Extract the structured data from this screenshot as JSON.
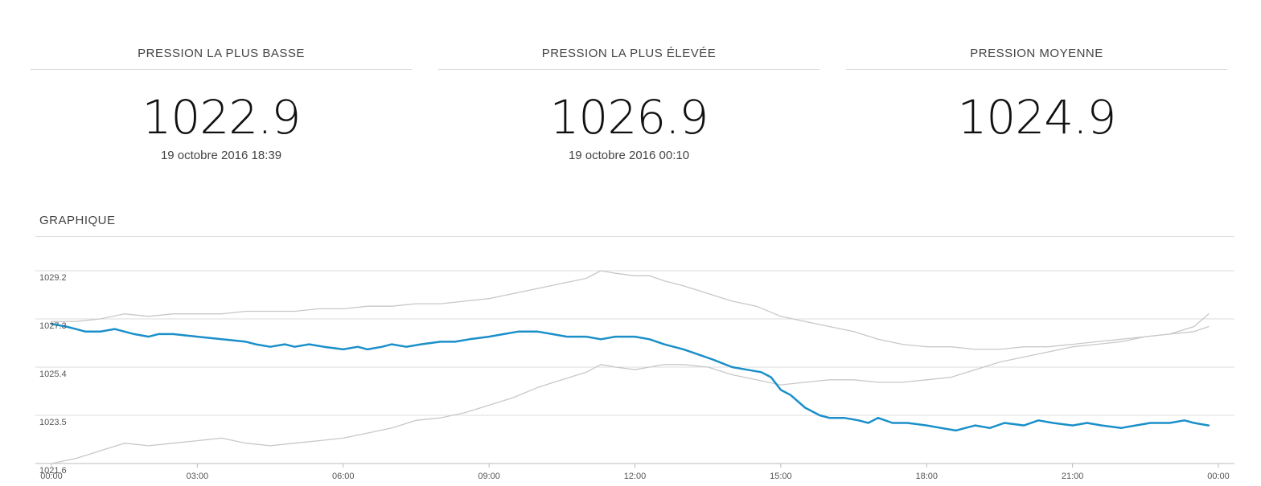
{
  "stats": {
    "low": {
      "label": "PRESSION LA PLUS BASSE",
      "value": "1022.9",
      "date": "19 octobre 2016 18:39"
    },
    "high": {
      "label": "PRESSION LA PLUS ÉLEVÉE",
      "value": "1026.9",
      "date": "19 octobre 2016 00:10"
    },
    "avg": {
      "label": "PRESSION MOYENNE",
      "value": "1024.9"
    }
  },
  "chart_title": "GRAPHIQUE",
  "chart_data": {
    "type": "line",
    "xlim": [
      0,
      24
    ],
    "ylim": [
      1021.6,
      1029.2
    ],
    "yticks": [
      "1029.2",
      "1027.3",
      "1025.4",
      "1023.5",
      "1021.6"
    ],
    "ytick_values": [
      1029.2,
      1027.3,
      1025.4,
      1023.5,
      1021.6
    ],
    "xticks": [
      "00:00",
      "03:00",
      "06:00",
      "09:00",
      "12:00",
      "15:00",
      "18:00",
      "21:00",
      "00:00"
    ],
    "xtick_values": [
      0,
      3,
      6,
      9,
      12,
      15,
      18,
      21,
      24
    ],
    "grid": true,
    "legend": "none",
    "series": [
      {
        "color": "#1a8fc9",
        "x": [
          0,
          0.3,
          0.5,
          0.7,
          1.0,
          1.3,
          1.7,
          2.0,
          2.2,
          2.5,
          3.0,
          3.5,
          4.0,
          4.2,
          4.5,
          4.8,
          5.0,
          5.3,
          5.6,
          6.0,
          6.3,
          6.5,
          6.8,
          7.0,
          7.3,
          7.6,
          8.0,
          8.3,
          8.6,
          9.0,
          9.3,
          9.6,
          10.0,
          10.3,
          10.6,
          11.0,
          11.3,
          11.6,
          12.0,
          12.3,
          12.6,
          13.0,
          13.3,
          13.6,
          14.0,
          14.3,
          14.6,
          14.8,
          15.0,
          15.2,
          15.5,
          15.8,
          16.0,
          16.3,
          16.6,
          16.8,
          17.0,
          17.3,
          17.6,
          18.0,
          18.3,
          18.6,
          19.0,
          19.3,
          19.6,
          20.0,
          20.3,
          20.6,
          21.0,
          21.3,
          21.6,
          22.0,
          22.3,
          22.6,
          23.0,
          23.3,
          23.5,
          23.8
        ],
        "values": [
          1027.1,
          1027.0,
          1026.9,
          1026.8,
          1026.8,
          1026.9,
          1026.7,
          1026.6,
          1026.7,
          1026.7,
          1026.6,
          1026.5,
          1026.4,
          1026.3,
          1026.2,
          1026.3,
          1026.2,
          1026.3,
          1026.2,
          1026.1,
          1026.2,
          1026.1,
          1026.2,
          1026.3,
          1026.2,
          1026.3,
          1026.4,
          1026.4,
          1026.5,
          1026.6,
          1026.7,
          1026.8,
          1026.8,
          1026.7,
          1026.6,
          1026.6,
          1026.5,
          1026.6,
          1026.6,
          1026.5,
          1026.3,
          1026.1,
          1025.9,
          1025.7,
          1025.4,
          1025.3,
          1025.2,
          1025.0,
          1024.5,
          1024.3,
          1023.8,
          1023.5,
          1023.4,
          1023.4,
          1023.3,
          1023.2,
          1023.4,
          1023.2,
          1023.2,
          1023.1,
          1023.0,
          1022.9,
          1023.1,
          1023.0,
          1023.2,
          1023.1,
          1023.3,
          1023.2,
          1023.1,
          1023.2,
          1023.1,
          1023.0,
          1023.1,
          1023.2,
          1023.2,
          1023.3,
          1023.2,
          1023.1
        ]
      },
      {
        "color": "#c8c8c8",
        "x": [
          0,
          0.5,
          1.0,
          1.5,
          2.0,
          2.5,
          3.0,
          3.5,
          4.0,
          4.5,
          5.0,
          5.5,
          6.0,
          6.5,
          7.0,
          7.5,
          8.0,
          8.5,
          9.0,
          9.5,
          10.0,
          10.5,
          11.0,
          11.3,
          11.6,
          12.0,
          12.3,
          12.6,
          13.0,
          13.5,
          14.0,
          14.5,
          15.0,
          15.5,
          16.0,
          16.5,
          17.0,
          17.5,
          18.0,
          18.5,
          19.0,
          19.5,
          20.0,
          20.5,
          21.0,
          21.5,
          22.0,
          22.5,
          23.0,
          23.5,
          23.8
        ],
        "values": [
          1027.2,
          1027.2,
          1027.3,
          1027.5,
          1027.4,
          1027.5,
          1027.5,
          1027.5,
          1027.6,
          1027.6,
          1027.6,
          1027.7,
          1027.7,
          1027.8,
          1027.8,
          1027.9,
          1027.9,
          1028.0,
          1028.1,
          1028.3,
          1028.5,
          1028.7,
          1028.9,
          1029.2,
          1029.1,
          1029.0,
          1029.0,
          1028.8,
          1028.6,
          1028.3,
          1028.0,
          1027.8,
          1027.4,
          1027.2,
          1027.0,
          1026.8,
          1026.5,
          1026.3,
          1026.2,
          1026.2,
          1026.1,
          1026.1,
          1026.2,
          1026.2,
          1026.3,
          1026.4,
          1026.5,
          1026.6,
          1026.7,
          1027.0,
          1027.5
        ]
      },
      {
        "color": "#c8c8c8",
        "x": [
          0,
          0.5,
          1.0,
          1.5,
          2.0,
          2.5,
          3.0,
          3.5,
          4.0,
          4.5,
          5.0,
          5.5,
          6.0,
          6.5,
          7.0,
          7.5,
          8.0,
          8.5,
          9.0,
          9.5,
          10.0,
          10.5,
          11.0,
          11.3,
          11.6,
          12.0,
          12.3,
          12.6,
          13.0,
          13.5,
          14.0,
          14.5,
          15.0,
          15.5,
          16.0,
          16.5,
          17.0,
          17.5,
          18.0,
          18.5,
          19.0,
          19.5,
          20.0,
          20.5,
          21.0,
          21.5,
          22.0,
          22.5,
          23.0,
          23.5,
          23.8
        ],
        "values": [
          1021.6,
          1021.8,
          1022.1,
          1022.4,
          1022.3,
          1022.4,
          1022.5,
          1022.6,
          1022.4,
          1022.3,
          1022.4,
          1022.5,
          1022.6,
          1022.8,
          1023.0,
          1023.3,
          1023.4,
          1023.6,
          1023.9,
          1024.2,
          1024.6,
          1024.9,
          1025.2,
          1025.5,
          1025.4,
          1025.3,
          1025.4,
          1025.5,
          1025.5,
          1025.4,
          1025.1,
          1024.9,
          1024.7,
          1024.8,
          1024.9,
          1024.9,
          1024.8,
          1024.8,
          1024.9,
          1025.0,
          1025.3,
          1025.6,
          1025.8,
          1026.0,
          1026.2,
          1026.3,
          1026.4,
          1026.6,
          1026.7,
          1026.8,
          1027.0
        ]
      }
    ]
  }
}
